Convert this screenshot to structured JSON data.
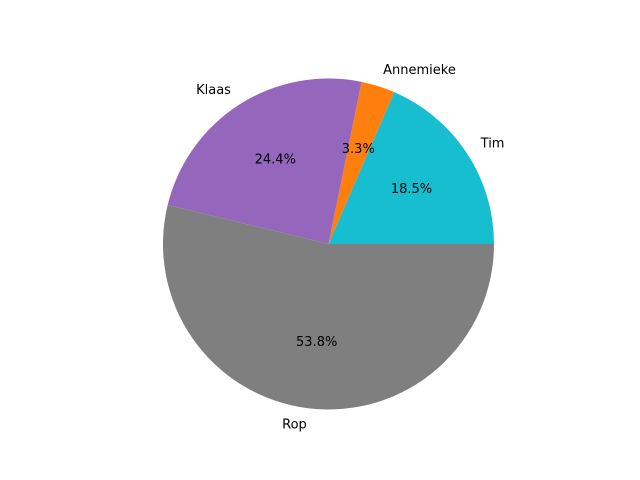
{
  "chart_data": {
    "type": "pie",
    "title": "",
    "start_angle_deg": 0,
    "direction": "counterclockwise",
    "slices": [
      {
        "label": "Tim",
        "value": 18.5,
        "pct_label": "18.5%",
        "color": "#17becf"
      },
      {
        "label": "Annemieke",
        "value": 3.3,
        "pct_label": "3.3%",
        "color": "#ff7f0e"
      },
      {
        "label": "Klaas",
        "value": 24.4,
        "pct_label": "24.4%",
        "color": "#9467bd"
      },
      {
        "label": "Rop",
        "value": 53.8,
        "pct_label": "53.8%",
        "color": "#7f7f7f"
      }
    ]
  }
}
